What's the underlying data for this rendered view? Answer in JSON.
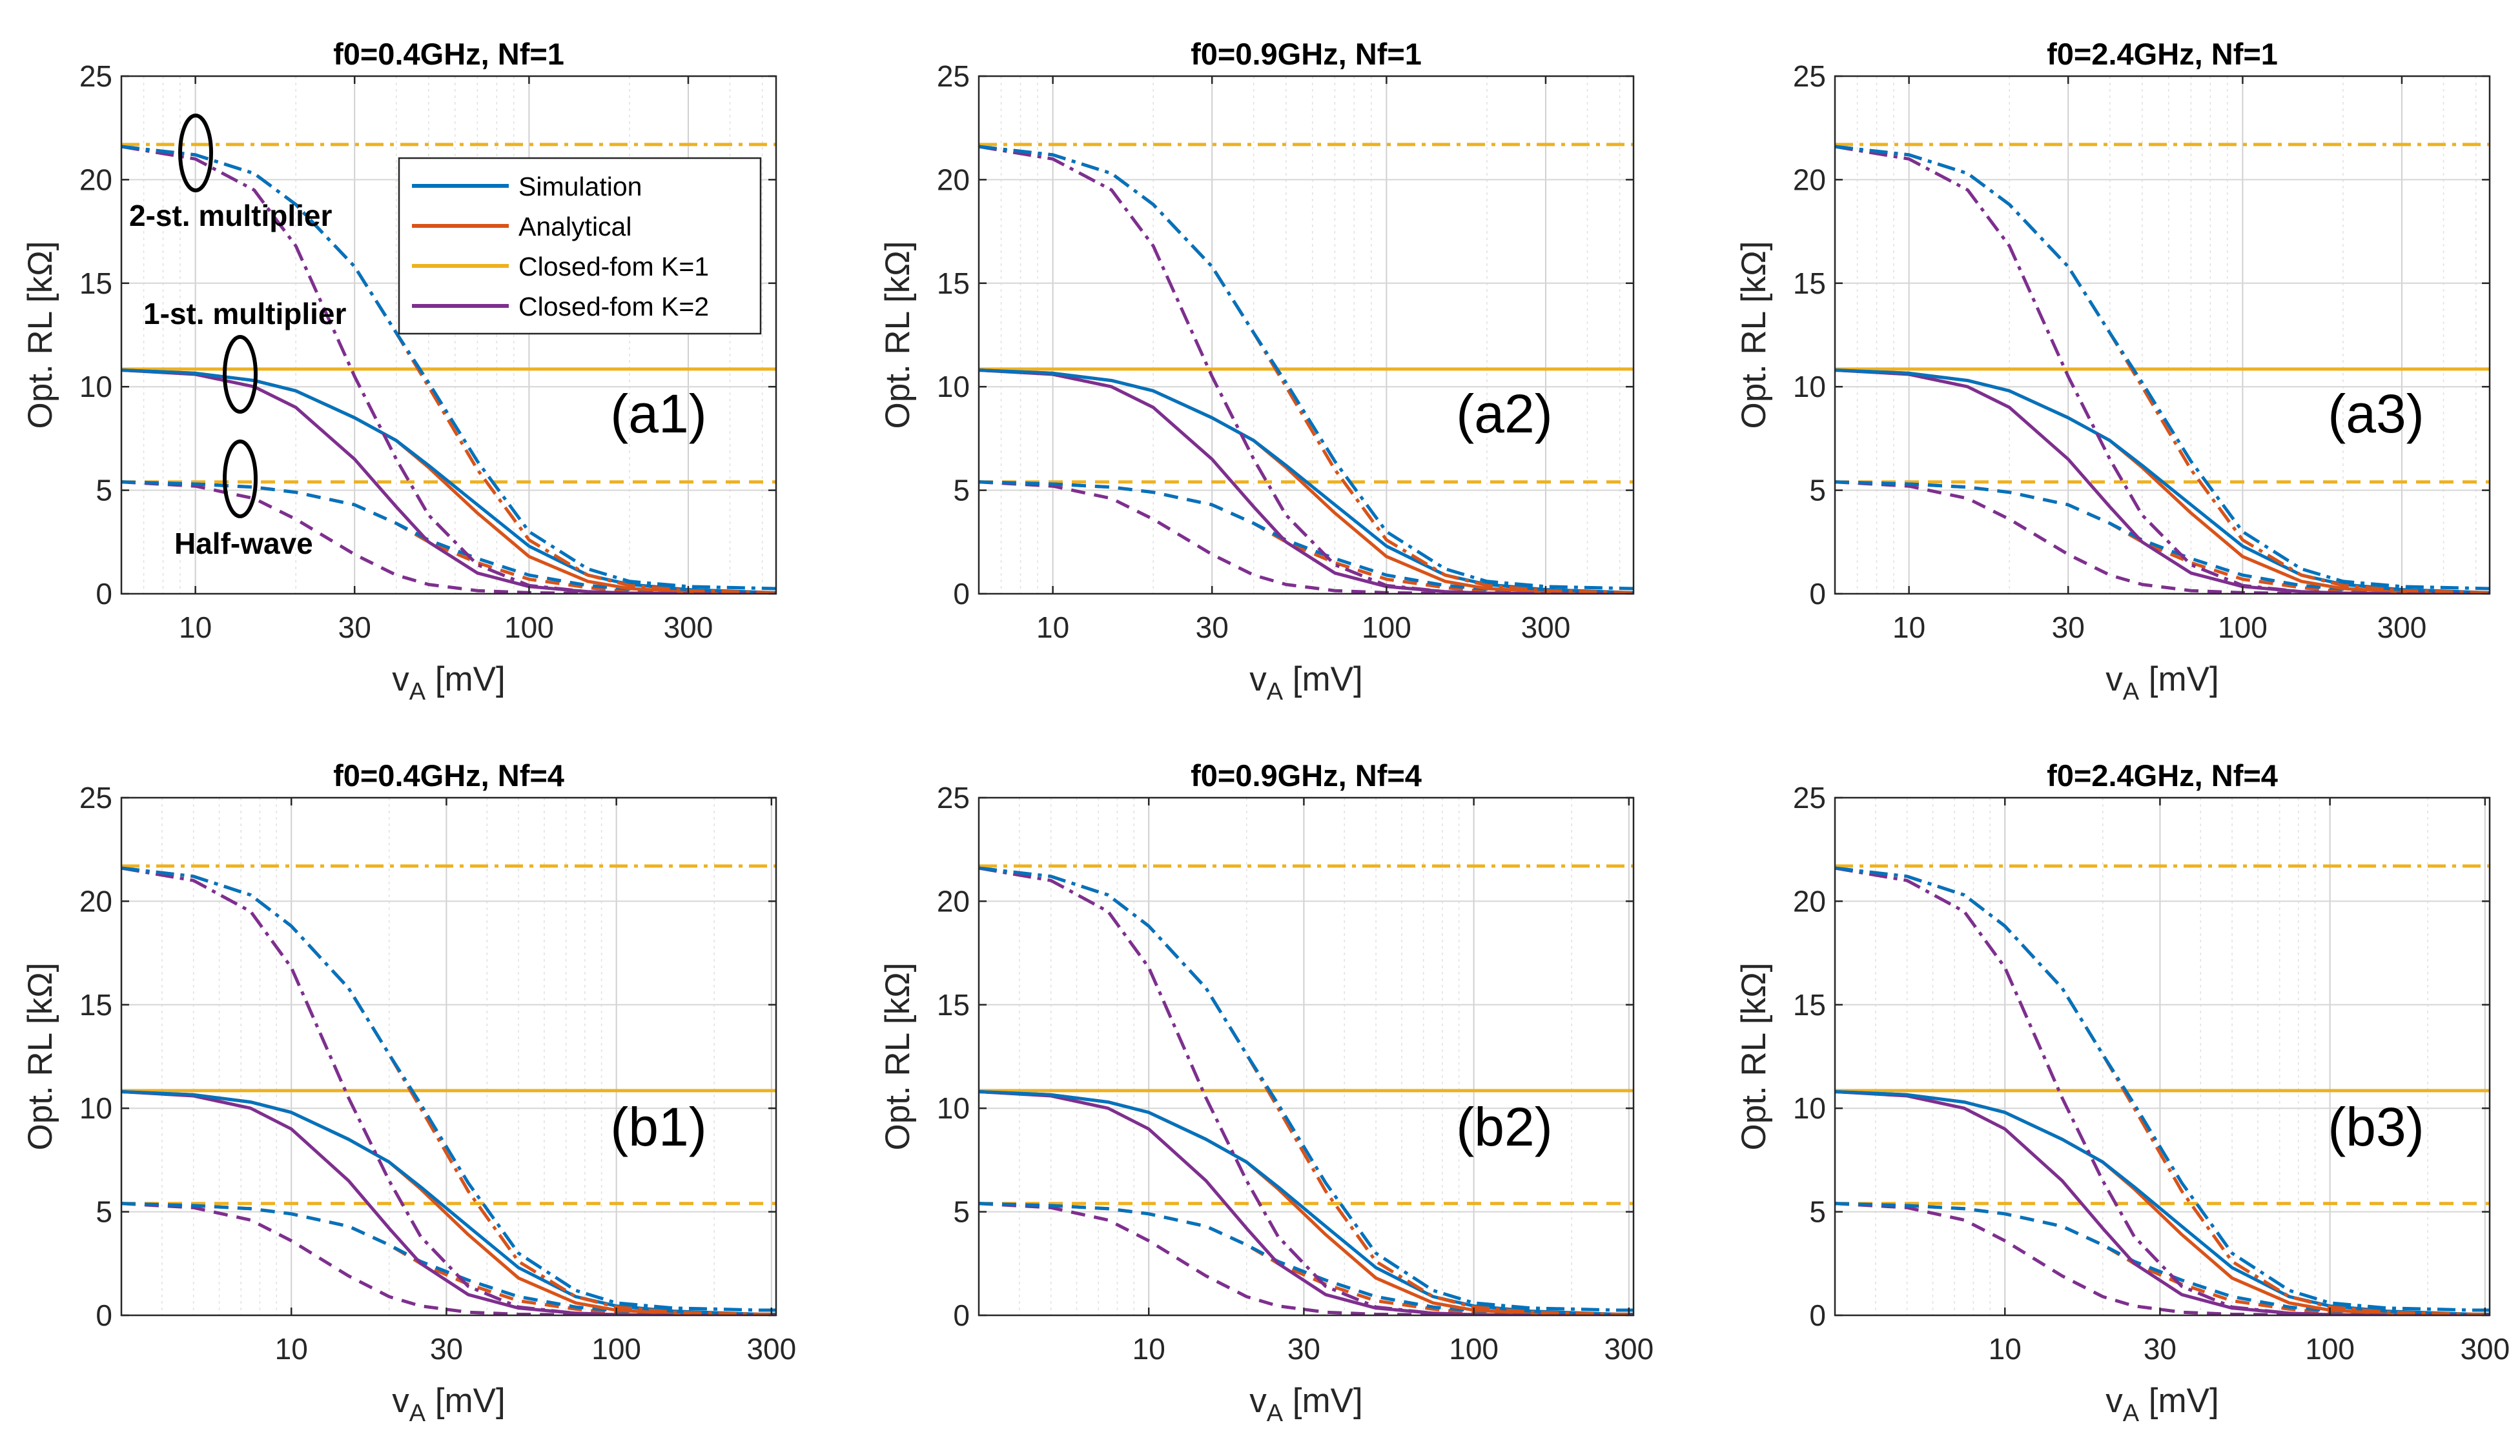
{
  "figure": {
    "legend": [
      {
        "label": "Simulation",
        "color": "#0072BD"
      },
      {
        "label": "Analytical",
        "color": "#D95319"
      },
      {
        "label": "Closed-fom K=1",
        "color": "#EDB120"
      },
      {
        "label": "Closed-fom K=2",
        "color": "#7E2F8E"
      }
    ],
    "annotations": [
      "2-st. multiplier",
      "1-st. multiplier",
      "Half-wave"
    ],
    "line_styles": {
      "Half-wave": "dashed",
      "1-st. multiplier": "solid",
      "2-st. multiplier": "dash-dot"
    }
  },
  "chart_data": [
    {
      "type": "line",
      "id": "a1",
      "title": "f0=0.4GHz, Nf=1",
      "xlabel": "v_A [mV]",
      "ylabel": "Opt. RL [kΩ]",
      "xscale": "log",
      "xlim": [
        6,
        550
      ],
      "ylim": [
        0,
        25
      ],
      "xticks": [
        10,
        30,
        100,
        300
      ],
      "xticklabels": [
        "10",
        "30",
        "100",
        "300"
      ],
      "yticks": [
        0,
        5,
        10,
        15,
        20,
        25
      ],
      "grid": true,
      "panel_label": "(a1)",
      "curve_scale": 1,
      "legend": true,
      "legend_position": "top-right"
    },
    {
      "type": "line",
      "id": "a2",
      "title": "f0=0.9GHz, Nf=1",
      "xlabel": "v_A [mV]",
      "ylabel": "Opt. RL [kΩ]",
      "xscale": "log",
      "xlim": [
        6,
        550
      ],
      "ylim": [
        0,
        25
      ],
      "xticks": [
        10,
        30,
        100,
        300
      ],
      "xticklabels": [
        "10",
        "30",
        "100",
        "300"
      ],
      "yticks": [
        0,
        5,
        10,
        15,
        20,
        25
      ],
      "grid": true,
      "panel_label": "(a2)",
      "curve_scale": 1,
      "legend": false
    },
    {
      "type": "line",
      "id": "a3",
      "title": "f0=2.4GHz, Nf=1",
      "xlabel": "v_A [mV]",
      "ylabel": "Opt. RL [kΩ]",
      "xscale": "log",
      "xlim": [
        6,
        550
      ],
      "ylim": [
        0,
        25
      ],
      "xticks": [
        10,
        30,
        100,
        300
      ],
      "xticklabels": [
        "10",
        "30",
        "100",
        "300"
      ],
      "yticks": [
        0,
        5,
        10,
        15,
        20,
        25
      ],
      "grid": true,
      "panel_label": "(a3)",
      "curve_scale": 1,
      "legend": false
    },
    {
      "type": "line",
      "id": "b1",
      "title": "f0=0.4GHz, Nf=4",
      "xlabel": "v_A [mV]",
      "ylabel": "Opt. RL [kΩ]",
      "xscale": "log",
      "xlim": [
        3,
        310
      ],
      "ylim": [
        0,
        25
      ],
      "xticks": [
        10,
        30,
        100,
        300
      ],
      "xticklabels": [
        "10",
        "30",
        "100",
        "300"
      ],
      "yticks": [
        0,
        5,
        10,
        15,
        20,
        25
      ],
      "grid": true,
      "panel_label": "(b1)",
      "curve_scale": 0.5,
      "legend": false
    },
    {
      "type": "line",
      "id": "b2",
      "title": "f0=0.9GHz, Nf=4",
      "xlabel": "v_A [mV]",
      "ylabel": "Opt. RL [kΩ]",
      "xscale": "log",
      "xlim": [
        3,
        310
      ],
      "ylim": [
        0,
        25
      ],
      "xticks": [
        10,
        30,
        100,
        300
      ],
      "xticklabels": [
        "10",
        "30",
        "100",
        "300"
      ],
      "yticks": [
        0,
        5,
        10,
        15,
        20,
        25
      ],
      "grid": true,
      "panel_label": "(b2)",
      "curve_scale": 0.5,
      "legend": false
    },
    {
      "type": "line",
      "id": "b3",
      "title": "f0=2.4GHz, Nf=4",
      "xlabel": "v_A [mV]",
      "ylabel": "Opt. RL [kΩ]",
      "xscale": "log",
      "xlim": [
        3,
        310
      ],
      "ylim": [
        0,
        25
      ],
      "xticks": [
        10,
        30,
        100,
        300
      ],
      "xticklabels": [
        "10",
        "30",
        "100",
        "300"
      ],
      "yticks": [
        0,
        5,
        10,
        15,
        20,
        25
      ],
      "grid": true,
      "panel_label": "(b3)",
      "curve_scale": 0.5,
      "legend": false
    }
  ],
  "series_shapes": {
    "note": "reference curves for Nf=1 panels; Nf=4 panels use the same shapes with x multiplied by curve_scale",
    "x": [
      6,
      10,
      15,
      20,
      30,
      40,
      50,
      70,
      100,
      150,
      200,
      300,
      550
    ],
    "closed_form_k1": {
      "half_wave": 5.4,
      "one_stage": 10.85,
      "two_stage": 21.7
    },
    "half_wave": {
      "simulation": [
        5.4,
        5.3,
        5.15,
        4.9,
        4.3,
        3.4,
        2.6,
        1.7,
        0.9,
        0.4,
        0.22,
        0.1,
        0.03
      ],
      "analytical": [
        5.4,
        5.3,
        5.15,
        4.9,
        4.3,
        3.4,
        2.5,
        1.5,
        0.7,
        0.3,
        0.1,
        0.05,
        0.02
      ],
      "closed_form_k2": [
        5.4,
        5.2,
        4.6,
        3.6,
        1.9,
        0.9,
        0.45,
        0.15,
        0.05,
        0.02,
        0.01,
        0.0,
        0.0
      ]
    },
    "one_stage": {
      "simulation": [
        10.8,
        10.65,
        10.3,
        9.8,
        8.5,
        7.4,
        6.2,
        4.3,
        2.3,
        0.9,
        0.45,
        0.2,
        0.05
      ],
      "analytical": [
        10.8,
        10.65,
        10.3,
        9.8,
        8.5,
        7.4,
        6.1,
        3.9,
        1.8,
        0.6,
        0.25,
        0.1,
        0.02
      ],
      "closed_form_k2": [
        10.8,
        10.6,
        10.0,
        9.0,
        6.5,
        4.2,
        2.5,
        1.0,
        0.35,
        0.1,
        0.03,
        0.0,
        0.0
      ]
    },
    "two_stage": {
      "simulation": [
        21.6,
        21.2,
        20.3,
        18.8,
        15.8,
        12.6,
        10.2,
        6.4,
        3.0,
        1.2,
        0.6,
        0.35,
        0.25
      ],
      "analytical": [
        21.6,
        21.2,
        20.3,
        18.8,
        15.8,
        12.6,
        10.0,
        6.0,
        2.6,
        0.9,
        0.4,
        0.15,
        0.05
      ],
      "closed_form_k2": [
        21.6,
        21.0,
        19.5,
        16.8,
        10.5,
        6.5,
        3.8,
        1.4,
        0.4,
        0.1,
        0.03,
        0.0,
        0.0
      ]
    }
  }
}
